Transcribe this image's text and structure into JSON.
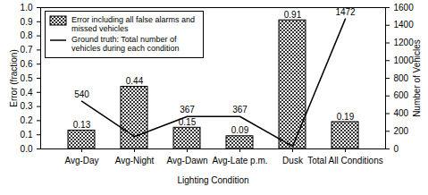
{
  "chart_data": {
    "type": "bar",
    "categories": [
      "Avg-Day",
      "Avg-Night",
      "Avg-Dawn",
      "Avg-Late p.m.",
      "Dusk",
      "Total All Conditions"
    ],
    "series": [
      {
        "name": "Error including all false alarms and missed vehicles",
        "type": "bar",
        "color": "#000000",
        "values": [
          0.13,
          0.44,
          0.15,
          0.09,
          0.91,
          0.19
        ],
        "data_labels": true
      },
      {
        "name": "Ground truth: Total number of vehicles during each condition",
        "type": "line",
        "axis": "y2",
        "color": "#000000",
        "values": [
          540,
          140,
          367,
          367,
          30,
          1472
        ],
        "data_labels": true,
        "value_labels": [
          "540",
          null,
          "367",
          "367",
          null,
          "1472"
        ]
      }
    ],
    "xlabel": "Lighting Condition",
    "ylabel": "Error (fraction)",
    "y2label": "Number of Vehicles",
    "ylim": [
      0,
      1
    ],
    "yticks": [
      {
        "value": 0,
        "label": "0.0"
      },
      0.1,
      0.2,
      0.3,
      0.4,
      0.5,
      0.6,
      0.7,
      0.8,
      0.9,
      {
        "value": 1,
        "label": "1.0"
      }
    ],
    "y2lim": [
      0,
      1600
    ],
    "y2ticks": [
      0,
      200,
      400,
      600,
      800,
      1000,
      1200,
      1400,
      1600
    ],
    "legend": "upper left"
  }
}
